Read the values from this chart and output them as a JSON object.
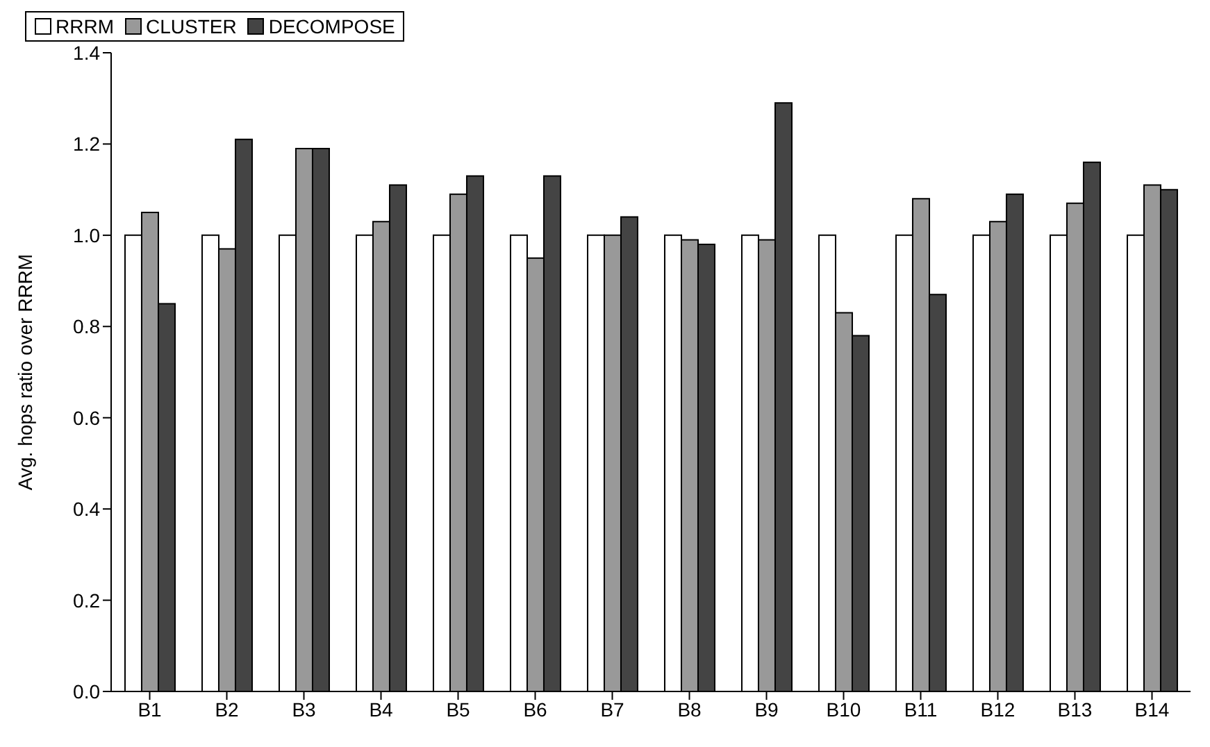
{
  "chart_data": {
    "type": "bar",
    "ylabel": "Avg. hops ratio over RRRM",
    "categories": [
      "B1",
      "B2",
      "B3",
      "B4",
      "B5",
      "B6",
      "B7",
      "B8",
      "B9",
      "B10",
      "B11",
      "B12",
      "B13",
      "B14"
    ],
    "series": [
      {
        "name": "RRRM",
        "color": "#ffffff",
        "values": [
          1.0,
          1.0,
          1.0,
          1.0,
          1.0,
          1.0,
          1.0,
          1.0,
          1.0,
          1.0,
          1.0,
          1.0,
          1.0,
          1.0
        ]
      },
      {
        "name": "CLUSTER",
        "color": "#999999",
        "values": [
          1.05,
          0.97,
          1.19,
          1.03,
          1.09,
          0.95,
          1.0,
          0.99,
          0.99,
          0.83,
          1.08,
          1.03,
          1.07,
          1.11
        ]
      },
      {
        "name": "DECOMPOSE",
        "color": "#444444",
        "values": [
          0.85,
          1.21,
          1.19,
          1.11,
          1.13,
          1.13,
          1.04,
          0.98,
          1.29,
          0.78,
          0.87,
          1.09,
          1.16,
          1.1
        ]
      }
    ],
    "ylim": [
      0,
      1.4
    ],
    "yticks": [
      {
        "value": 0,
        "label": "0.0"
      },
      {
        "value": 0.2,
        "label": "0.2"
      },
      {
        "value": 0.4,
        "label": "0.4"
      },
      {
        "value": 0.6,
        "label": "0.6"
      },
      {
        "value": 0.8,
        "label": "0.8"
      },
      {
        "value": 1,
        "label": "1.0"
      },
      {
        "value": 1.2,
        "label": "1.2"
      },
      {
        "value": 1.4,
        "label": "1.4"
      }
    ],
    "grid": false,
    "legend": "top"
  }
}
